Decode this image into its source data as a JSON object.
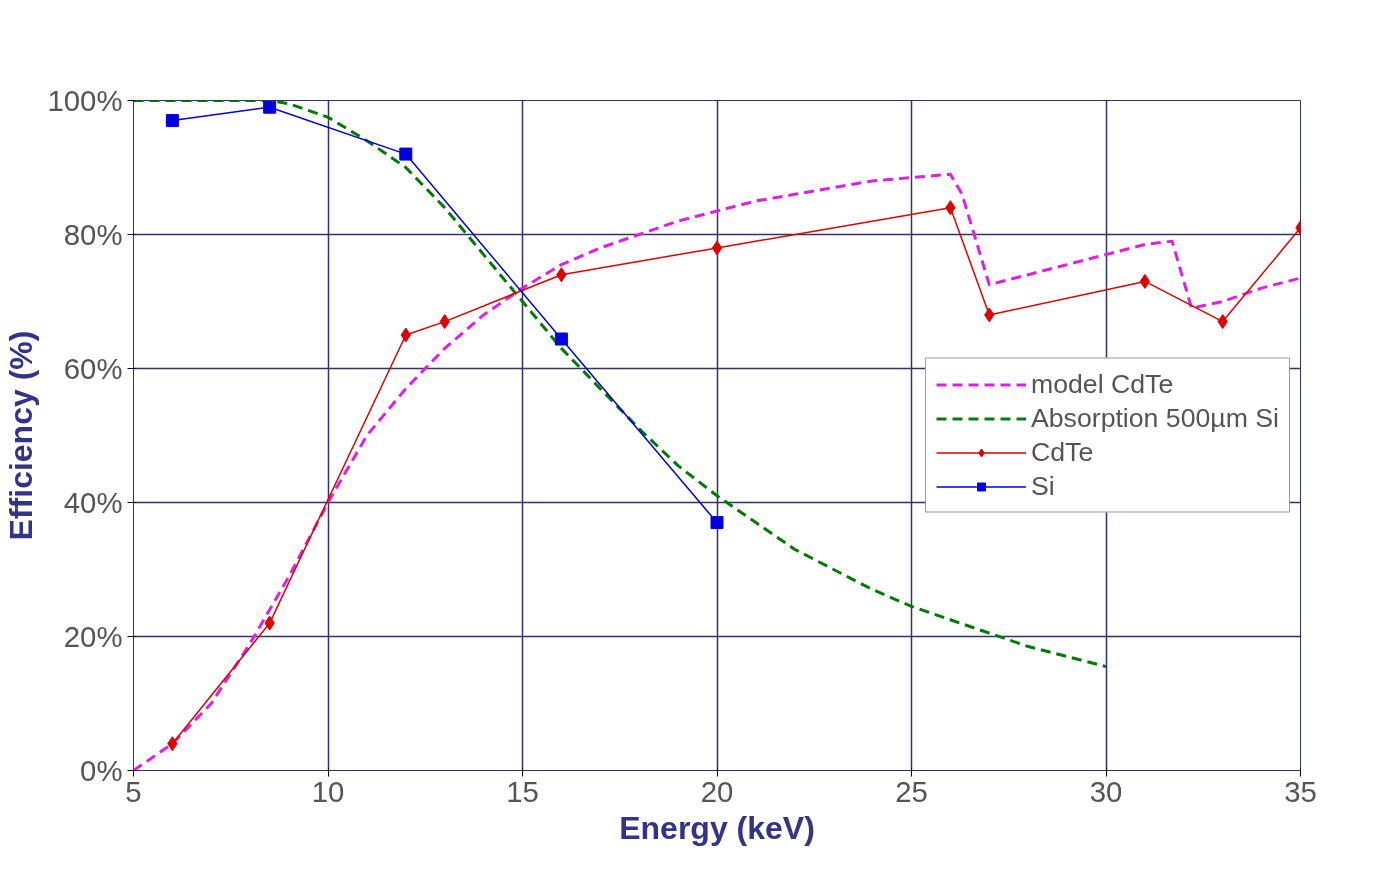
{
  "chart_data": {
    "type": "line",
    "xlabel": "Energy (keV)",
    "ylabel": "Efficiency (%)",
    "xlim": [
      5,
      35
    ],
    "xticks": [
      5,
      10,
      15,
      20,
      25,
      30,
      35
    ],
    "ylim": [
      0,
      100
    ],
    "yticks": [
      {
        "value": 0,
        "label": "0%"
      },
      {
        "value": 20,
        "label": "20%"
      },
      {
        "value": 40,
        "label": "40%"
      },
      {
        "value": 60,
        "label": "60%"
      },
      {
        "value": 80,
        "label": "80%"
      },
      {
        "value": 100,
        "label": "100%"
      }
    ],
    "grid": true,
    "legend": "right",
    "series": [
      {
        "name": "model CdTe",
        "color": "#e020e0",
        "line_style": "dashed",
        "marker": "none",
        "x": [
          5,
          6,
          7,
          8,
          9,
          10,
          11,
          12,
          13,
          14,
          15,
          16,
          17,
          18,
          19,
          20,
          21,
          22,
          23,
          24,
          25,
          26,
          26.3,
          27,
          28,
          29,
          30,
          31,
          31.7,
          32.2,
          33,
          34,
          35
        ],
        "values": [
          0,
          4,
          10,
          19,
          29,
          40,
          50,
          57,
          63,
          68,
          72,
          75.5,
          78,
          80,
          82,
          83.5,
          85,
          86,
          87,
          88,
          88.5,
          89,
          86,
          72.5,
          74,
          75.5,
          77,
          78.5,
          79,
          69,
          70,
          72,
          73.5
        ]
      },
      {
        "name": "Absorption 500µm Si",
        "color": "#007a00",
        "line_style": "dashed",
        "marker": "none",
        "x": [
          5,
          7,
          8.5,
          9,
          10,
          11,
          12,
          13,
          14,
          15,
          16,
          17,
          18,
          19,
          20,
          21,
          22,
          23,
          24,
          25,
          26,
          27,
          28,
          29,
          30
        ],
        "values": [
          100,
          100,
          100,
          99.5,
          97.5,
          94,
          90,
          84,
          77,
          70,
          63,
          57,
          51,
          45.5,
          41,
          37,
          33,
          30,
          27,
          24.5,
          22.5,
          20.5,
          18.5,
          17,
          15.5
        ]
      },
      {
        "name": "CdTe",
        "color": "#e00000",
        "line_style": "solid",
        "marker": "diamond",
        "x": [
          6,
          8.5,
          12,
          13,
          16,
          20,
          26,
          27,
          31,
          33,
          35
        ],
        "values": [
          4,
          22,
          65,
          67,
          74,
          78,
          84,
          68,
          73,
          67,
          81
        ]
      },
      {
        "name": "Si",
        "color": "#0000e0",
        "line_style": "solid",
        "marker": "square",
        "x": [
          6,
          8.5,
          12,
          16,
          20
        ],
        "values": [
          97,
          99,
          92,
          64.4,
          37
        ]
      }
    ]
  }
}
